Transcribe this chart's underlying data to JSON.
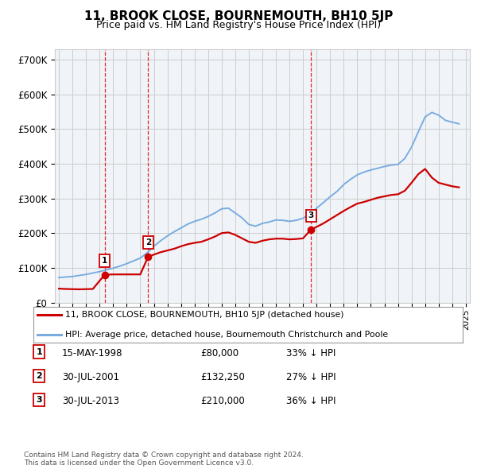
{
  "title": "11, BROOK CLOSE, BOURNEMOUTH, BH10 5JP",
  "subtitle": "Price paid vs. HM Land Registry's House Price Index (HPI)",
  "hpi_x": [
    1995.0,
    1995.5,
    1996.0,
    1996.5,
    1997.0,
    1997.5,
    1998.0,
    1998.5,
    1999.0,
    1999.5,
    2000.0,
    2000.5,
    2001.0,
    2001.5,
    2002.0,
    2002.5,
    2003.0,
    2003.5,
    2004.0,
    2004.5,
    2005.0,
    2005.5,
    2006.0,
    2006.5,
    2007.0,
    2007.5,
    2008.0,
    2008.5,
    2009.0,
    2009.5,
    2010.0,
    2010.5,
    2011.0,
    2011.5,
    2012.0,
    2012.5,
    2013.0,
    2013.5,
    2014.0,
    2014.5,
    2015.0,
    2015.5,
    2016.0,
    2016.5,
    2017.0,
    2017.5,
    2018.0,
    2018.5,
    2019.0,
    2019.5,
    2020.0,
    2020.5,
    2021.0,
    2021.5,
    2022.0,
    2022.5,
    2023.0,
    2023.5,
    2024.0,
    2024.5
  ],
  "hpi_y": [
    72000,
    73500,
    75000,
    78000,
    81000,
    85000,
    89000,
    94000,
    99000,
    105000,
    112000,
    120000,
    128000,
    143000,
    162000,
    178000,
    192000,
    204000,
    215000,
    226000,
    234000,
    240000,
    248000,
    258000,
    270000,
    272000,
    258000,
    244000,
    225000,
    220000,
    228000,
    232000,
    238000,
    237000,
    234000,
    237000,
    243000,
    255000,
    272000,
    288000,
    305000,
    320000,
    340000,
    355000,
    368000,
    376000,
    382000,
    387000,
    392000,
    396000,
    398000,
    415000,
    448000,
    492000,
    535000,
    548000,
    540000,
    525000,
    520000,
    515000
  ],
  "red_x": [
    1995.0,
    1995.5,
    1996.0,
    1996.5,
    1997.0,
    1997.5,
    1998.37,
    1999.0,
    1999.5,
    2000.0,
    2000.5,
    2001.0,
    2001.58,
    2002.0,
    2002.5,
    2003.0,
    2003.5,
    2004.0,
    2004.5,
    2005.0,
    2005.5,
    2006.0,
    2006.5,
    2007.0,
    2007.5,
    2008.0,
    2008.5,
    2009.0,
    2009.5,
    2010.0,
    2010.5,
    2011.0,
    2011.5,
    2012.0,
    2012.5,
    2013.0,
    2013.58,
    2014.0,
    2014.5,
    2015.0,
    2015.5,
    2016.0,
    2016.5,
    2017.0,
    2017.5,
    2018.0,
    2018.5,
    2019.0,
    2019.5,
    2020.0,
    2020.5,
    2021.0,
    2021.5,
    2022.0,
    2022.5,
    2023.0,
    2023.5,
    2024.0,
    2024.5
  ],
  "red_y": [
    40000,
    39000,
    38500,
    38000,
    38500,
    39000,
    80000,
    81000,
    81000,
    81000,
    81000,
    81000,
    132250,
    138000,
    145000,
    150000,
    155000,
    162000,
    168000,
    172000,
    175000,
    182000,
    190000,
    200000,
    202000,
    195000,
    185000,
    175000,
    172000,
    178000,
    182000,
    184000,
    184000,
    182000,
    183000,
    185000,
    210000,
    218000,
    228000,
    240000,
    252000,
    264000,
    275000,
    285000,
    290000,
    296000,
    302000,
    306000,
    310000,
    312000,
    322000,
    345000,
    370000,
    385000,
    360000,
    345000,
    340000,
    335000,
    332000
  ],
  "sold_years": [
    1998.37,
    2001.58,
    2013.58
  ],
  "sold_prices": [
    80000,
    132250,
    210000
  ],
  "sold_labels": [
    "1",
    "2",
    "3"
  ],
  "dashed_color": "#dd0000",
  "sold_color": "#cc0000",
  "hpi_color": "#7aace0",
  "background_color": "#f0f4f8",
  "grid_color": "#cccccc",
  "ylim": [
    0,
    730000
  ],
  "xlim": [
    1994.7,
    2025.3
  ],
  "yticks": [
    0,
    100000,
    200000,
    300000,
    400000,
    500000,
    600000,
    700000
  ],
  "ytick_labels": [
    "£0",
    "£100K",
    "£200K",
    "£300K",
    "£400K",
    "£500K",
    "£600K",
    "£700K"
  ],
  "xtick_years": [
    1995,
    1996,
    1997,
    1998,
    1999,
    2000,
    2001,
    2002,
    2003,
    2004,
    2005,
    2006,
    2007,
    2008,
    2009,
    2010,
    2011,
    2012,
    2013,
    2014,
    2015,
    2016,
    2017,
    2018,
    2019,
    2020,
    2021,
    2022,
    2023,
    2024,
    2025
  ],
  "legend_sold_label": "11, BROOK CLOSE, BOURNEMOUTH, BH10 5JP (detached house)",
  "legend_hpi_label": "HPI: Average price, detached house, Bournemouth Christchurch and Poole",
  "table_data": [
    [
      "1",
      "15-MAY-1998",
      "£80,000",
      "33% ↓ HPI"
    ],
    [
      "2",
      "30-JUL-2001",
      "£132,250",
      "27% ↓ HPI"
    ],
    [
      "3",
      "30-JUL-2013",
      "£210,000",
      "36% ↓ HPI"
    ]
  ],
  "footnote": "Contains HM Land Registry data © Crown copyright and database right 2024.\nThis data is licensed under the Open Government Licence v3.0."
}
